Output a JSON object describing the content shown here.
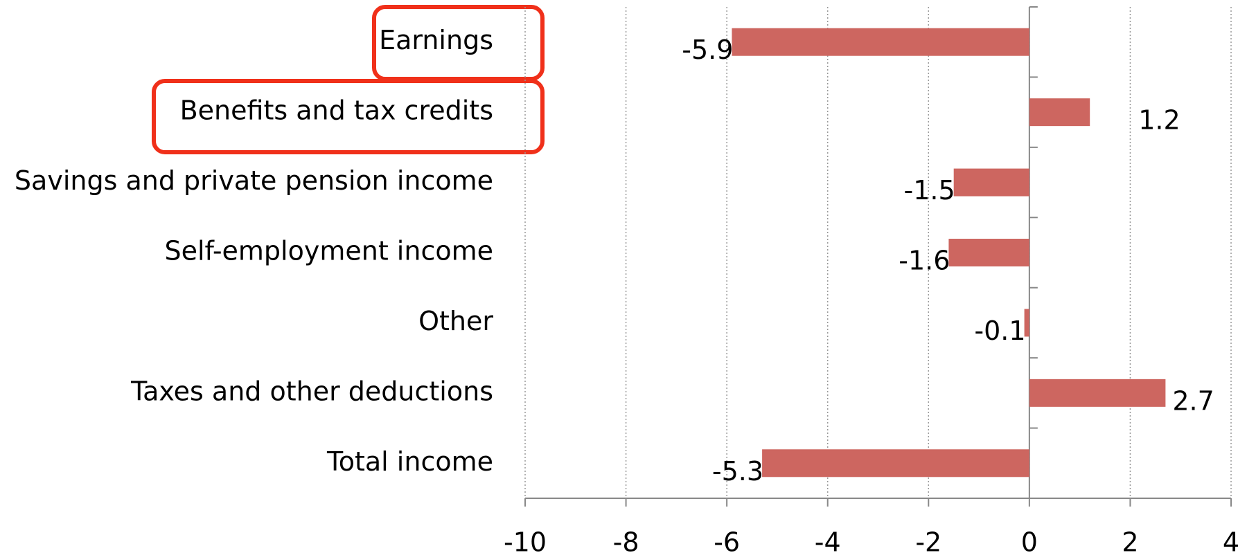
{
  "chart_data": {
    "type": "bar",
    "orientation": "horizontal",
    "categories": [
      "Earnings",
      "Benefits and tax credits",
      "Savings and private pension income",
      "Self-employment income",
      "Other",
      "Taxes and other deductions",
      "Total income"
    ],
    "values": [
      -5.9,
      1.2,
      -1.5,
      -1.6,
      -0.1,
      2.7,
      -5.3
    ],
    "color": "#cd6660",
    "xlim": [
      -10,
      4
    ],
    "xticks": [
      -10,
      -8,
      -6,
      -4,
      -2,
      0,
      2,
      4
    ],
    "grid": true
  }
}
